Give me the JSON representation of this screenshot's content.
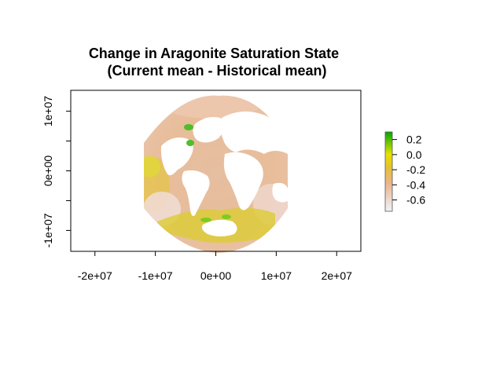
{
  "title": "Change in Aragonite Saturation State",
  "subtitle": "(Current mean - Historical mean)",
  "x_axis": {
    "ticks": [
      {
        "value": -20000000,
        "label": "-2e+07"
      },
      {
        "value": -10000000,
        "label": "-1e+07"
      },
      {
        "value": 0,
        "label": "0e+00"
      },
      {
        "value": 10000000,
        "label": "1e+07"
      },
      {
        "value": 20000000,
        "label": "2e+07"
      }
    ],
    "range": [
      -24000000,
      24000000
    ]
  },
  "y_axis": {
    "ticks": [
      {
        "value": -10000000,
        "label": "-1e+07"
      },
      {
        "value": 0,
        "label": "0e+00"
      },
      {
        "value": 10000000,
        "label": "1e+07"
      }
    ],
    "minor_ticks": [
      -5000000,
      5000000
    ],
    "range": [
      -13500000,
      13500000
    ]
  },
  "colorbar": {
    "range": [
      -0.75,
      0.3
    ],
    "ticks": [
      {
        "value": 0.2,
        "label": "0.2"
      },
      {
        "value": 0.0,
        "label": "0.0"
      },
      {
        "value": -0.2,
        "label": "-0.2"
      },
      {
        "value": -0.4,
        "label": "-0.4"
      },
      {
        "value": -0.6,
        "label": "-0.6"
      }
    ],
    "colors": [
      "#f2f2f2",
      "#ecb48c",
      "#e6d000",
      "#00a600"
    ]
  },
  "map": {
    "projection": "orthographic-like (Atlantic-centred)",
    "ocean_colors": {
      "typical": "#e8bfa3",
      "low_change": "#f2dcd4",
      "moderate": "#e6c05a",
      "high": "#dce028",
      "positive": "#52bf2a"
    },
    "land_color": "#ffffff"
  }
}
